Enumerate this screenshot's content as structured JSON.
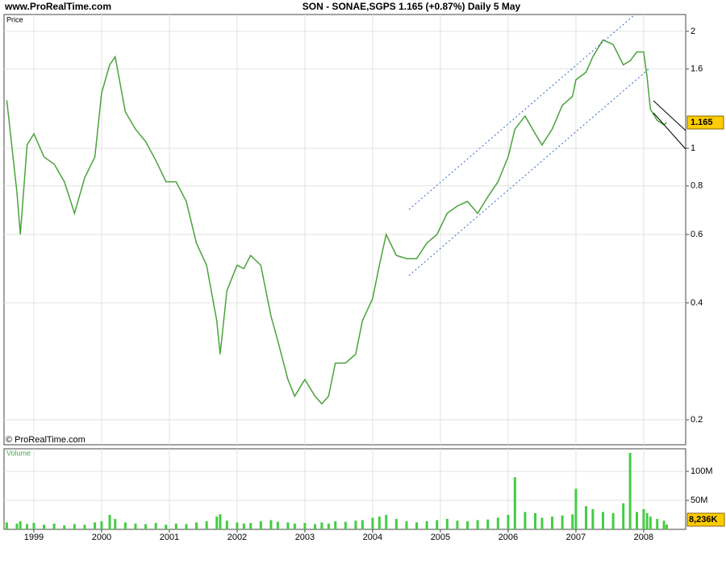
{
  "header": {
    "site": "www.ProRealTime.com",
    "title": "SON - SONAE,SGPS    1.165 (+0.87%)    Daily  5 May",
    "copyright": "© ProRealTime.com"
  },
  "chart_data": [
    {
      "type": "line",
      "title": "Price",
      "log_scale": true,
      "grid": true,
      "color": "#4aa33a",
      "x": [
        1998.6,
        1998.75,
        1998.8,
        1998.9,
        1999.0,
        1999.15,
        1999.3,
        1999.45,
        1999.6,
        1999.75,
        1999.9,
        2000.0,
        2000.12,
        2000.2,
        2000.35,
        2000.5,
        2000.65,
        2000.8,
        2000.95,
        2001.1,
        2001.25,
        2001.4,
        2001.55,
        2001.7,
        2001.75,
        2001.85,
        2002.0,
        2002.1,
        2002.2,
        2002.35,
        2002.5,
        2002.6,
        2002.75,
        2002.85,
        2003.0,
        2003.15,
        2003.25,
        2003.35,
        2003.45,
        2003.6,
        2003.75,
        2003.85,
        2004.0,
        2004.1,
        2004.2,
        2004.35,
        2004.5,
        2004.65,
        2004.8,
        2004.95,
        2005.1,
        2005.25,
        2005.4,
        2005.55,
        2005.7,
        2005.85,
        2006.0,
        2006.1,
        2006.25,
        2006.4,
        2006.5,
        2006.65,
        2006.8,
        2006.95,
        2007.0,
        2007.15,
        2007.25,
        2007.4,
        2007.55,
        2007.7,
        2007.8,
        2007.9,
        2008.0,
        2008.05,
        2008.1,
        2008.2,
        2008.3,
        2008.34
      ],
      "series": [
        {
          "name": "SON",
          "color": "#4aa33a",
          "values": [
            1.33,
            0.77,
            0.6,
            1.02,
            1.09,
            0.95,
            0.91,
            0.82,
            0.68,
            0.84,
            0.95,
            1.39,
            1.64,
            1.72,
            1.24,
            1.12,
            1.04,
            0.93,
            0.82,
            0.82,
            0.73,
            0.57,
            0.5,
            0.36,
            0.295,
            0.43,
            0.5,
            0.49,
            0.53,
            0.5,
            0.37,
            0.32,
            0.254,
            0.23,
            0.254,
            0.23,
            0.22,
            0.23,
            0.28,
            0.28,
            0.295,
            0.36,
            0.41,
            0.5,
            0.6,
            0.53,
            0.52,
            0.52,
            0.57,
            0.6,
            0.68,
            0.71,
            0.73,
            0.68,
            0.75,
            0.82,
            0.95,
            1.12,
            1.21,
            1.09,
            1.02,
            1.12,
            1.29,
            1.36,
            1.5,
            1.57,
            1.72,
            1.9,
            1.85,
            1.64,
            1.68,
            1.77,
            1.77,
            1.53,
            1.26,
            1.18,
            1.15,
            1.165
          ]
        }
      ],
      "xlim": [
        1998.56,
        2008.62
      ],
      "xticks": [
        1999,
        2000,
        2001,
        2002,
        2003,
        2004,
        2005,
        2006,
        2007,
        2008
      ],
      "ylim": [
        0.1725,
        2.21
      ],
      "yticks": [
        0.2,
        0.4,
        0.6,
        0.8,
        1,
        1.6,
        2
      ]
    },
    {
      "type": "bar",
      "title": "Volume",
      "grid": true,
      "color": "#44cc44",
      "series": [
        {
          "name": "Volume",
          "color": "#44cc44",
          "values": [
            12,
            10,
            14,
            9,
            11,
            8,
            10,
            7,
            9,
            8,
            12,
            14,
            25,
            18,
            12,
            10,
            9,
            11,
            8,
            10,
            9,
            12,
            14,
            22,
            26,
            15,
            12,
            10,
            11,
            14,
            16,
            13,
            12,
            10,
            11,
            9,
            12,
            10,
            14,
            13,
            15,
            16,
            20,
            22,
            25,
            18,
            14,
            12,
            14,
            16,
            18,
            15,
            14,
            16,
            17,
            20,
            25,
            90,
            30,
            28,
            20,
            22,
            24,
            26,
            70,
            40,
            35,
            30,
            28,
            45,
            132,
            30,
            35,
            28,
            22,
            18,
            15,
            8.236
          ],
          "last_value_label": "8,236K"
        }
      ],
      "ylim": [
        0,
        139
      ],
      "yticks": [
        {
          "value": 50,
          "label": "50M"
        },
        {
          "value": 100,
          "label": "100M"
        }
      ]
    }
  ]
}
